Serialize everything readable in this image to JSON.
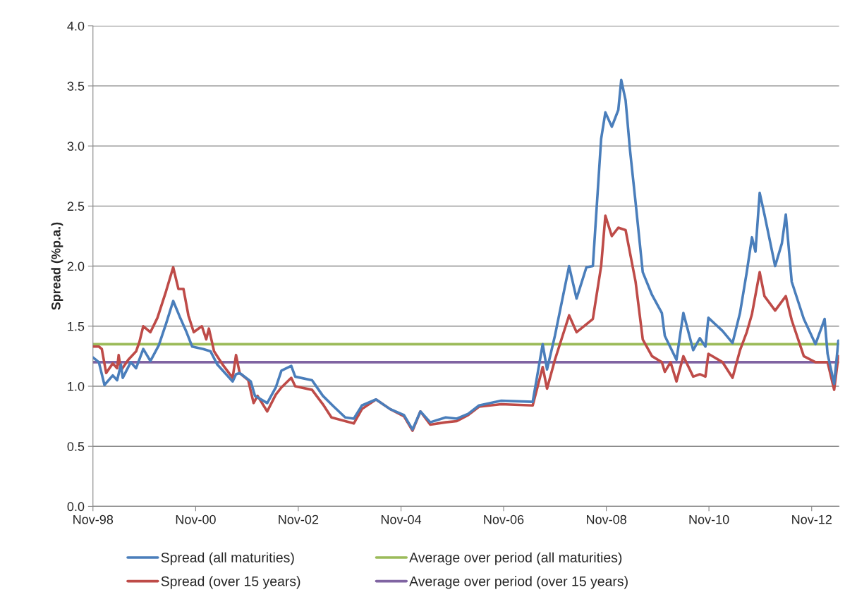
{
  "chart_data": {
    "type": "line",
    "ylabel": "Spread (%p.a.)",
    "xlim": [
      "1998-11-01",
      "2013-05-15"
    ],
    "ylim": [
      0,
      4
    ],
    "xticks": [
      {
        "value": "1998-11-01",
        "label": "Nov-98"
      },
      {
        "value": "2000-11-01",
        "label": "Nov-00"
      },
      {
        "value": "2002-11-01",
        "label": "Nov-02"
      },
      {
        "value": "2004-11-01",
        "label": "Nov-04"
      },
      {
        "value": "2006-11-01",
        "label": "Nov-06"
      },
      {
        "value": "2008-11-01",
        "label": "Nov-08"
      },
      {
        "value": "2010-11-01",
        "label": "Nov-10"
      },
      {
        "value": "2012-11-01",
        "label": "Nov-12"
      }
    ],
    "yticks": [
      {
        "value": 0,
        "label": "0.0"
      },
      {
        "value": 0.5,
        "label": "0.5"
      },
      {
        "value": 1,
        "label": "1.0"
      },
      {
        "value": 1.5,
        "label": "1.5"
      },
      {
        "value": 2,
        "label": "2.0"
      },
      {
        "value": 2.5,
        "label": "2.5"
      },
      {
        "value": 3,
        "label": "3.0"
      },
      {
        "value": 3.5,
        "label": "3.5"
      },
      {
        "value": 4,
        "label": "4.0"
      }
    ],
    "grid": "y",
    "legend": "bottom",
    "marker": "none",
    "line_style": "solid",
    "series": [
      {
        "name": "Spread (all maturities)",
        "color": "#4a7ebb",
        "x": [
          "1998-11-01",
          "1998-12-13",
          "1999-01-22",
          "1999-03-22",
          "1999-04-22",
          "1999-05-19",
          "1999-06-01",
          "1999-07-28",
          "1999-09-04",
          "1999-10-25",
          "1999-12-15",
          "2000-02-12",
          "2000-04-04",
          "2000-05-25",
          "2000-07-10",
          "2000-08-28",
          "2000-10-07",
          "2000-12-25",
          "2001-02-15",
          "2001-04-04",
          "2001-07-22",
          "2001-08-15",
          "2001-09-10",
          "2001-11-28",
          "2001-12-28",
          "2002-03-25",
          "2002-05-25",
          "2002-07-04",
          "2002-09-12",
          "2002-10-10",
          "2003-02-07",
          "2003-04-25",
          "2003-07-12",
          "2003-10-01",
          "2003-12-01",
          "2004-01-28",
          "2004-05-07",
          "2004-08-15",
          "2004-11-22",
          "2005-01-22",
          "2005-03-19",
          "2005-05-28",
          "2005-09-15",
          "2005-12-03",
          "2006-02-22",
          "2006-05-10",
          "2006-10-15",
          "2007-05-27",
          "2007-08-06",
          "2007-09-06",
          "2007-11-01",
          "2008-02-10",
          "2008-04-03",
          "2008-06-12",
          "2008-07-28",
          "2008-09-25",
          "2008-10-25",
          "2008-12-10",
          "2009-01-25",
          "2009-02-15",
          "2009-03-18",
          "2009-04-18",
          "2009-05-28",
          "2009-07-18",
          "2009-09-22",
          "2009-12-01",
          "2009-12-22",
          "2010-03-15",
          "2010-05-03",
          "2010-07-12",
          "2010-08-28",
          "2010-10-07",
          "2010-10-28",
          "2011-02-06",
          "2011-04-18",
          "2011-06-10",
          "2011-07-28",
          "2011-09-03",
          "2011-09-28",
          "2011-10-28",
          "2011-12-01",
          "2012-02-15",
          "2012-04-03",
          "2012-05-01",
          "2012-06-12",
          "2012-09-06",
          "2012-11-28",
          "2013-02-01",
          "2013-02-22",
          "2013-04-10",
          "2013-05-10"
        ],
        "values": [
          1.24,
          1.2,
          1.01,
          1.09,
          1.05,
          1.18,
          1.07,
          1.2,
          1.15,
          1.31,
          1.21,
          1.34,
          1.52,
          1.71,
          1.58,
          1.45,
          1.33,
          1.31,
          1.29,
          1.18,
          1.04,
          1.1,
          1.11,
          1.04,
          0.92,
          0.86,
          0.99,
          1.13,
          1.17,
          1.08,
          1.05,
          0.92,
          0.83,
          0.74,
          0.73,
          0.84,
          0.89,
          0.81,
          0.76,
          0.64,
          0.79,
          0.7,
          0.74,
          0.73,
          0.77,
          0.84,
          0.88,
          0.87,
          1.35,
          1.14,
          1.42,
          2.0,
          1.73,
          1.99,
          2.0,
          3.06,
          3.28,
          3.16,
          3.3,
          3.55,
          3.38,
          2.97,
          2.53,
          1.95,
          1.76,
          1.61,
          1.42,
          1.22,
          1.61,
          1.3,
          1.4,
          1.33,
          1.57,
          1.46,
          1.36,
          1.61,
          1.95,
          2.24,
          2.12,
          2.61,
          2.43,
          2.0,
          2.19,
          2.43,
          1.87,
          1.56,
          1.35,
          1.56,
          1.27,
          1.02,
          1.38
        ]
      },
      {
        "name": "Spread (over 15 years)",
        "color": "#be4b48",
        "x": [
          "1998-11-01",
          "1998-12-13",
          "1999-01-03",
          "1999-02-03",
          "1999-03-22",
          "1999-04-22",
          "1999-05-03",
          "1999-05-19",
          "1999-07-10",
          "1999-09-04",
          "1999-09-28",
          "1999-10-25",
          "1999-12-15",
          "2000-02-03",
          "2000-04-04",
          "2000-05-25",
          "2000-07-01",
          "2000-08-06",
          "2000-09-10",
          "2000-10-18",
          "2000-12-15",
          "2001-01-15",
          "2001-02-03",
          "2001-03-12",
          "2001-05-12",
          "2001-07-22",
          "2001-08-15",
          "2001-09-10",
          "2001-11-10",
          "2001-12-18",
          "2002-01-15",
          "2002-03-25",
          "2002-05-25",
          "2002-07-04",
          "2002-09-12",
          "2002-10-10",
          "2003-02-07",
          "2003-04-25",
          "2003-06-25",
          "2003-10-01",
          "2003-12-01",
          "2004-01-28",
          "2004-05-07",
          "2004-08-15",
          "2004-11-22",
          "2005-01-22",
          "2005-03-19",
          "2005-05-28",
          "2005-09-15",
          "2005-12-03",
          "2006-02-22",
          "2006-05-10",
          "2006-10-15",
          "2007-05-27",
          "2007-08-06",
          "2007-09-06",
          "2007-11-01",
          "2008-02-10",
          "2008-04-03",
          "2008-07-28",
          "2008-09-25",
          "2008-10-25",
          "2008-12-10",
          "2009-01-25",
          "2009-03-18",
          "2009-05-28",
          "2009-07-18",
          "2009-09-22",
          "2009-12-01",
          "2009-12-22",
          "2010-02-01",
          "2010-03-15",
          "2010-05-03",
          "2010-07-12",
          "2010-08-28",
          "2010-10-07",
          "2010-10-28",
          "2011-02-06",
          "2011-04-18",
          "2011-06-10",
          "2011-07-28",
          "2011-09-03",
          "2011-10-28",
          "2011-12-01",
          "2012-02-15",
          "2012-05-01",
          "2012-06-12",
          "2012-09-06",
          "2012-11-28",
          "2013-02-22",
          "2013-04-10",
          "2013-05-10"
        ],
        "values": [
          1.33,
          1.33,
          1.31,
          1.11,
          1.19,
          1.15,
          1.26,
          1.13,
          1.22,
          1.29,
          1.37,
          1.5,
          1.45,
          1.57,
          1.79,
          1.99,
          1.81,
          1.81,
          1.59,
          1.45,
          1.5,
          1.39,
          1.48,
          1.29,
          1.18,
          1.07,
          1.26,
          1.11,
          1.05,
          0.86,
          0.92,
          0.79,
          0.93,
          0.99,
          1.07,
          1.0,
          0.97,
          0.85,
          0.74,
          0.71,
          0.69,
          0.81,
          0.89,
          0.81,
          0.75,
          0.63,
          0.79,
          0.68,
          0.7,
          0.71,
          0.76,
          0.83,
          0.85,
          0.84,
          1.16,
          0.98,
          1.22,
          1.59,
          1.45,
          1.56,
          2.0,
          2.42,
          2.25,
          2.32,
          2.3,
          1.87,
          1.39,
          1.25,
          1.2,
          1.12,
          1.2,
          1.04,
          1.25,
          1.08,
          1.1,
          1.08,
          1.27,
          1.2,
          1.07,
          1.3,
          1.45,
          1.6,
          1.95,
          1.75,
          1.63,
          1.75,
          1.55,
          1.25,
          1.2,
          1.2,
          0.97,
          1.25
        ]
      },
      {
        "name": "Average over period (all maturities)",
        "color": "#9bbb59",
        "x": [
          "1998-11-01",
          "2013-05-10"
        ],
        "values": [
          1.35,
          1.35
        ]
      },
      {
        "name": "Average over period (over 15 years)",
        "color": "#8064a2",
        "x": [
          "1998-11-01",
          "2013-05-10"
        ],
        "values": [
          1.2,
          1.2
        ]
      }
    ]
  }
}
